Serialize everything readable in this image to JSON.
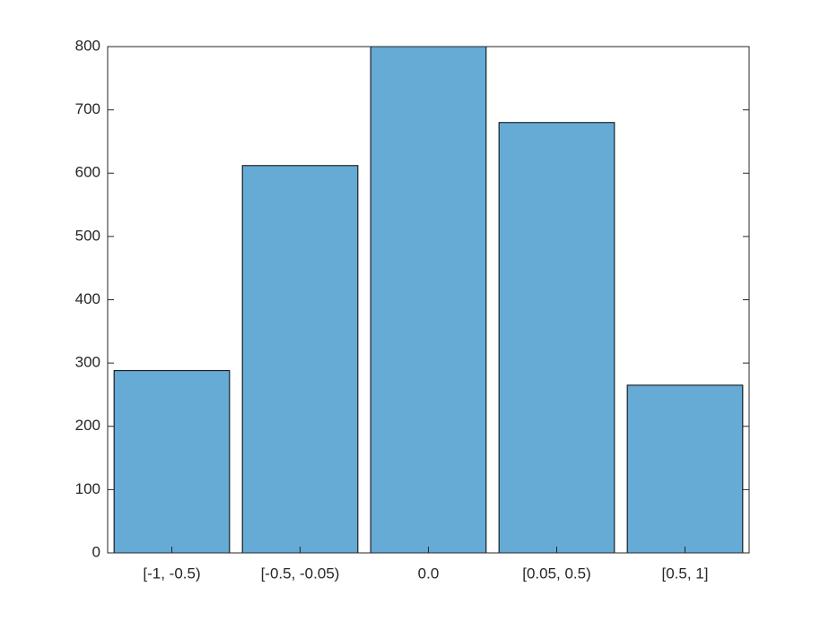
{
  "chart_data": {
    "type": "bar",
    "categories": [
      "[-1, -0.5)",
      "[-0.5, -0.05)",
      "0.0",
      "[0.05, 0.5)",
      "[0.5, 1]"
    ],
    "values": [
      288,
      612,
      800,
      680,
      265
    ],
    "color": "#66aad6",
    "ylim": [
      0,
      800
    ],
    "yticks": [
      0,
      100,
      200,
      300,
      400,
      500,
      600,
      700,
      800
    ],
    "grid": false
  }
}
